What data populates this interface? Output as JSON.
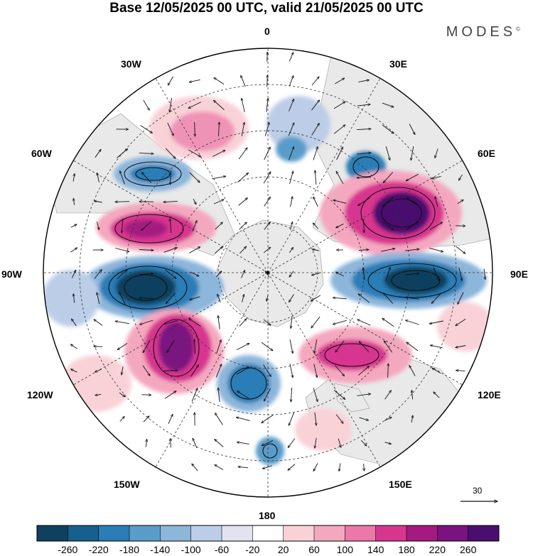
{
  "title": "Base 12/05/2025 00 UTC, valid 21/05/2025 00 UTC",
  "brand": "MODES",
  "brand_mark": "©",
  "longitude_labels": {
    "lon_0": "0",
    "lon_30e": "30E",
    "lon_60e": "60E",
    "lon_90e": "90E",
    "lon_120e": "120E",
    "lon_150e": "150E",
    "lon_180": "180",
    "lon_150w": "150W",
    "lon_120w": "120W",
    "lon_90w": "90W",
    "lon_60w": "60W",
    "lon_30w": "30W"
  },
  "reference_vector": "30",
  "colorbar": {
    "labels": [
      "-260",
      "-220",
      "-180",
      "-140",
      "-100",
      "-60",
      "-20",
      "20",
      "60",
      "100",
      "140",
      "180",
      "220",
      "260"
    ],
    "colors": [
      "#10405f",
      "#175f8e",
      "#2a7db6",
      "#5a9cc9",
      "#8db6db",
      "#bccde7",
      "#e2e2f0",
      "#ffffff",
      "#f9d2d8",
      "#f4a8c0",
      "#eb78a8",
      "#d7368f",
      "#a51a80",
      "#7a1280",
      "#4a0f6e"
    ]
  },
  "colors": {
    "land": "#e9e9e9",
    "graticule": "#333333",
    "outline": "#000000"
  }
}
